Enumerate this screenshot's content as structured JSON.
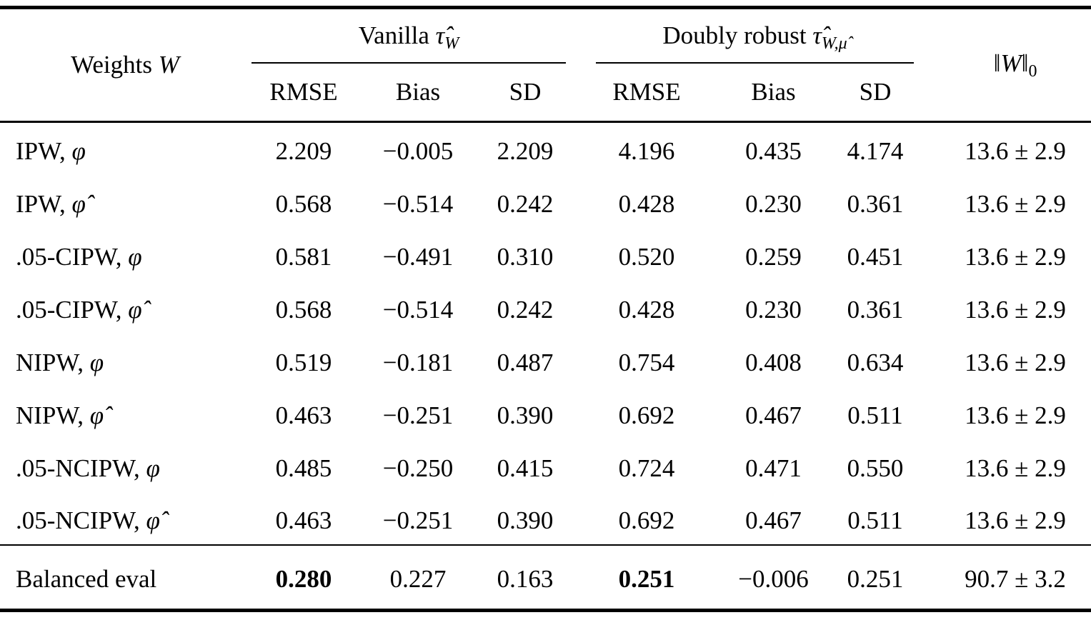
{
  "colors": {
    "background": "#ffffff",
    "text": "#000000",
    "rules": "#000000"
  },
  "header": {
    "weights": {
      "text": "Weights",
      "symbol": "W"
    },
    "vanilla": {
      "text": "Vanilla",
      "symbol": "τ̂",
      "sub": "W"
    },
    "doubly_robust": {
      "text": "Doubly robust",
      "symbol": "τ̂",
      "sub": "W,μ̂"
    },
    "subcolumns": [
      "RMSE",
      "Bias",
      "SD"
    ],
    "norm": {
      "open": "‖",
      "symbol": "W",
      "close": "‖",
      "sub": "0"
    }
  },
  "rows": [
    {
      "label": "IPW,",
      "symbol": "φ",
      "vanilla": {
        "rmse": "2.209",
        "bias": "−0.005",
        "sd": "2.209"
      },
      "doubly_robust": {
        "rmse": "4.196",
        "bias": "0.435",
        "sd": "4.174"
      },
      "norm_w0": "13.6 ± 2.9"
    },
    {
      "label": "IPW,",
      "symbol": "φ̂",
      "vanilla": {
        "rmse": "0.568",
        "bias": "−0.514",
        "sd": "0.242"
      },
      "doubly_robust": {
        "rmse": "0.428",
        "bias": "0.230",
        "sd": "0.361"
      },
      "norm_w0": "13.6 ± 2.9"
    },
    {
      "label": ".05-CIPW,",
      "symbol": "φ",
      "vanilla": {
        "rmse": "0.581",
        "bias": "−0.491",
        "sd": "0.310"
      },
      "doubly_robust": {
        "rmse": "0.520",
        "bias": "0.259",
        "sd": "0.451"
      },
      "norm_w0": "13.6 ± 2.9"
    },
    {
      "label": ".05-CIPW,",
      "symbol": "φ̂",
      "vanilla": {
        "rmse": "0.568",
        "bias": "−0.514",
        "sd": "0.242"
      },
      "doubly_robust": {
        "rmse": "0.428",
        "bias": "0.230",
        "sd": "0.361"
      },
      "norm_w0": "13.6 ± 2.9"
    },
    {
      "label": "NIPW,",
      "symbol": "φ",
      "vanilla": {
        "rmse": "0.519",
        "bias": "−0.181",
        "sd": "0.487"
      },
      "doubly_robust": {
        "rmse": "0.754",
        "bias": "0.408",
        "sd": "0.634"
      },
      "norm_w0": "13.6 ± 2.9"
    },
    {
      "label": "NIPW,",
      "symbol": "φ̂",
      "vanilla": {
        "rmse": "0.463",
        "bias": "−0.251",
        "sd": "0.390"
      },
      "doubly_robust": {
        "rmse": "0.692",
        "bias": "0.467",
        "sd": "0.511"
      },
      "norm_w0": "13.6 ± 2.9"
    },
    {
      "label": ".05-NCIPW,",
      "symbol": "φ",
      "vanilla": {
        "rmse": "0.485",
        "bias": "−0.250",
        "sd": "0.415"
      },
      "doubly_robust": {
        "rmse": "0.724",
        "bias": "0.471",
        "sd": "0.550"
      },
      "norm_w0": "13.6 ± 2.9"
    },
    {
      "label": ".05-NCIPW,",
      "symbol": "φ̂",
      "vanilla": {
        "rmse": "0.463",
        "bias": "−0.251",
        "sd": "0.390"
      },
      "doubly_robust": {
        "rmse": "0.692",
        "bias": "0.467",
        "sd": "0.511"
      },
      "norm_w0": "13.6 ± 2.9"
    }
  ],
  "footer": {
    "label": "Balanced eval",
    "vanilla": {
      "rmse": "0.280",
      "bias": "0.227",
      "sd": "0.163"
    },
    "doubly_robust": {
      "rmse": "0.251",
      "bias": "−0.006",
      "sd": "0.251"
    },
    "norm_w0": "90.7 ± 3.2"
  }
}
